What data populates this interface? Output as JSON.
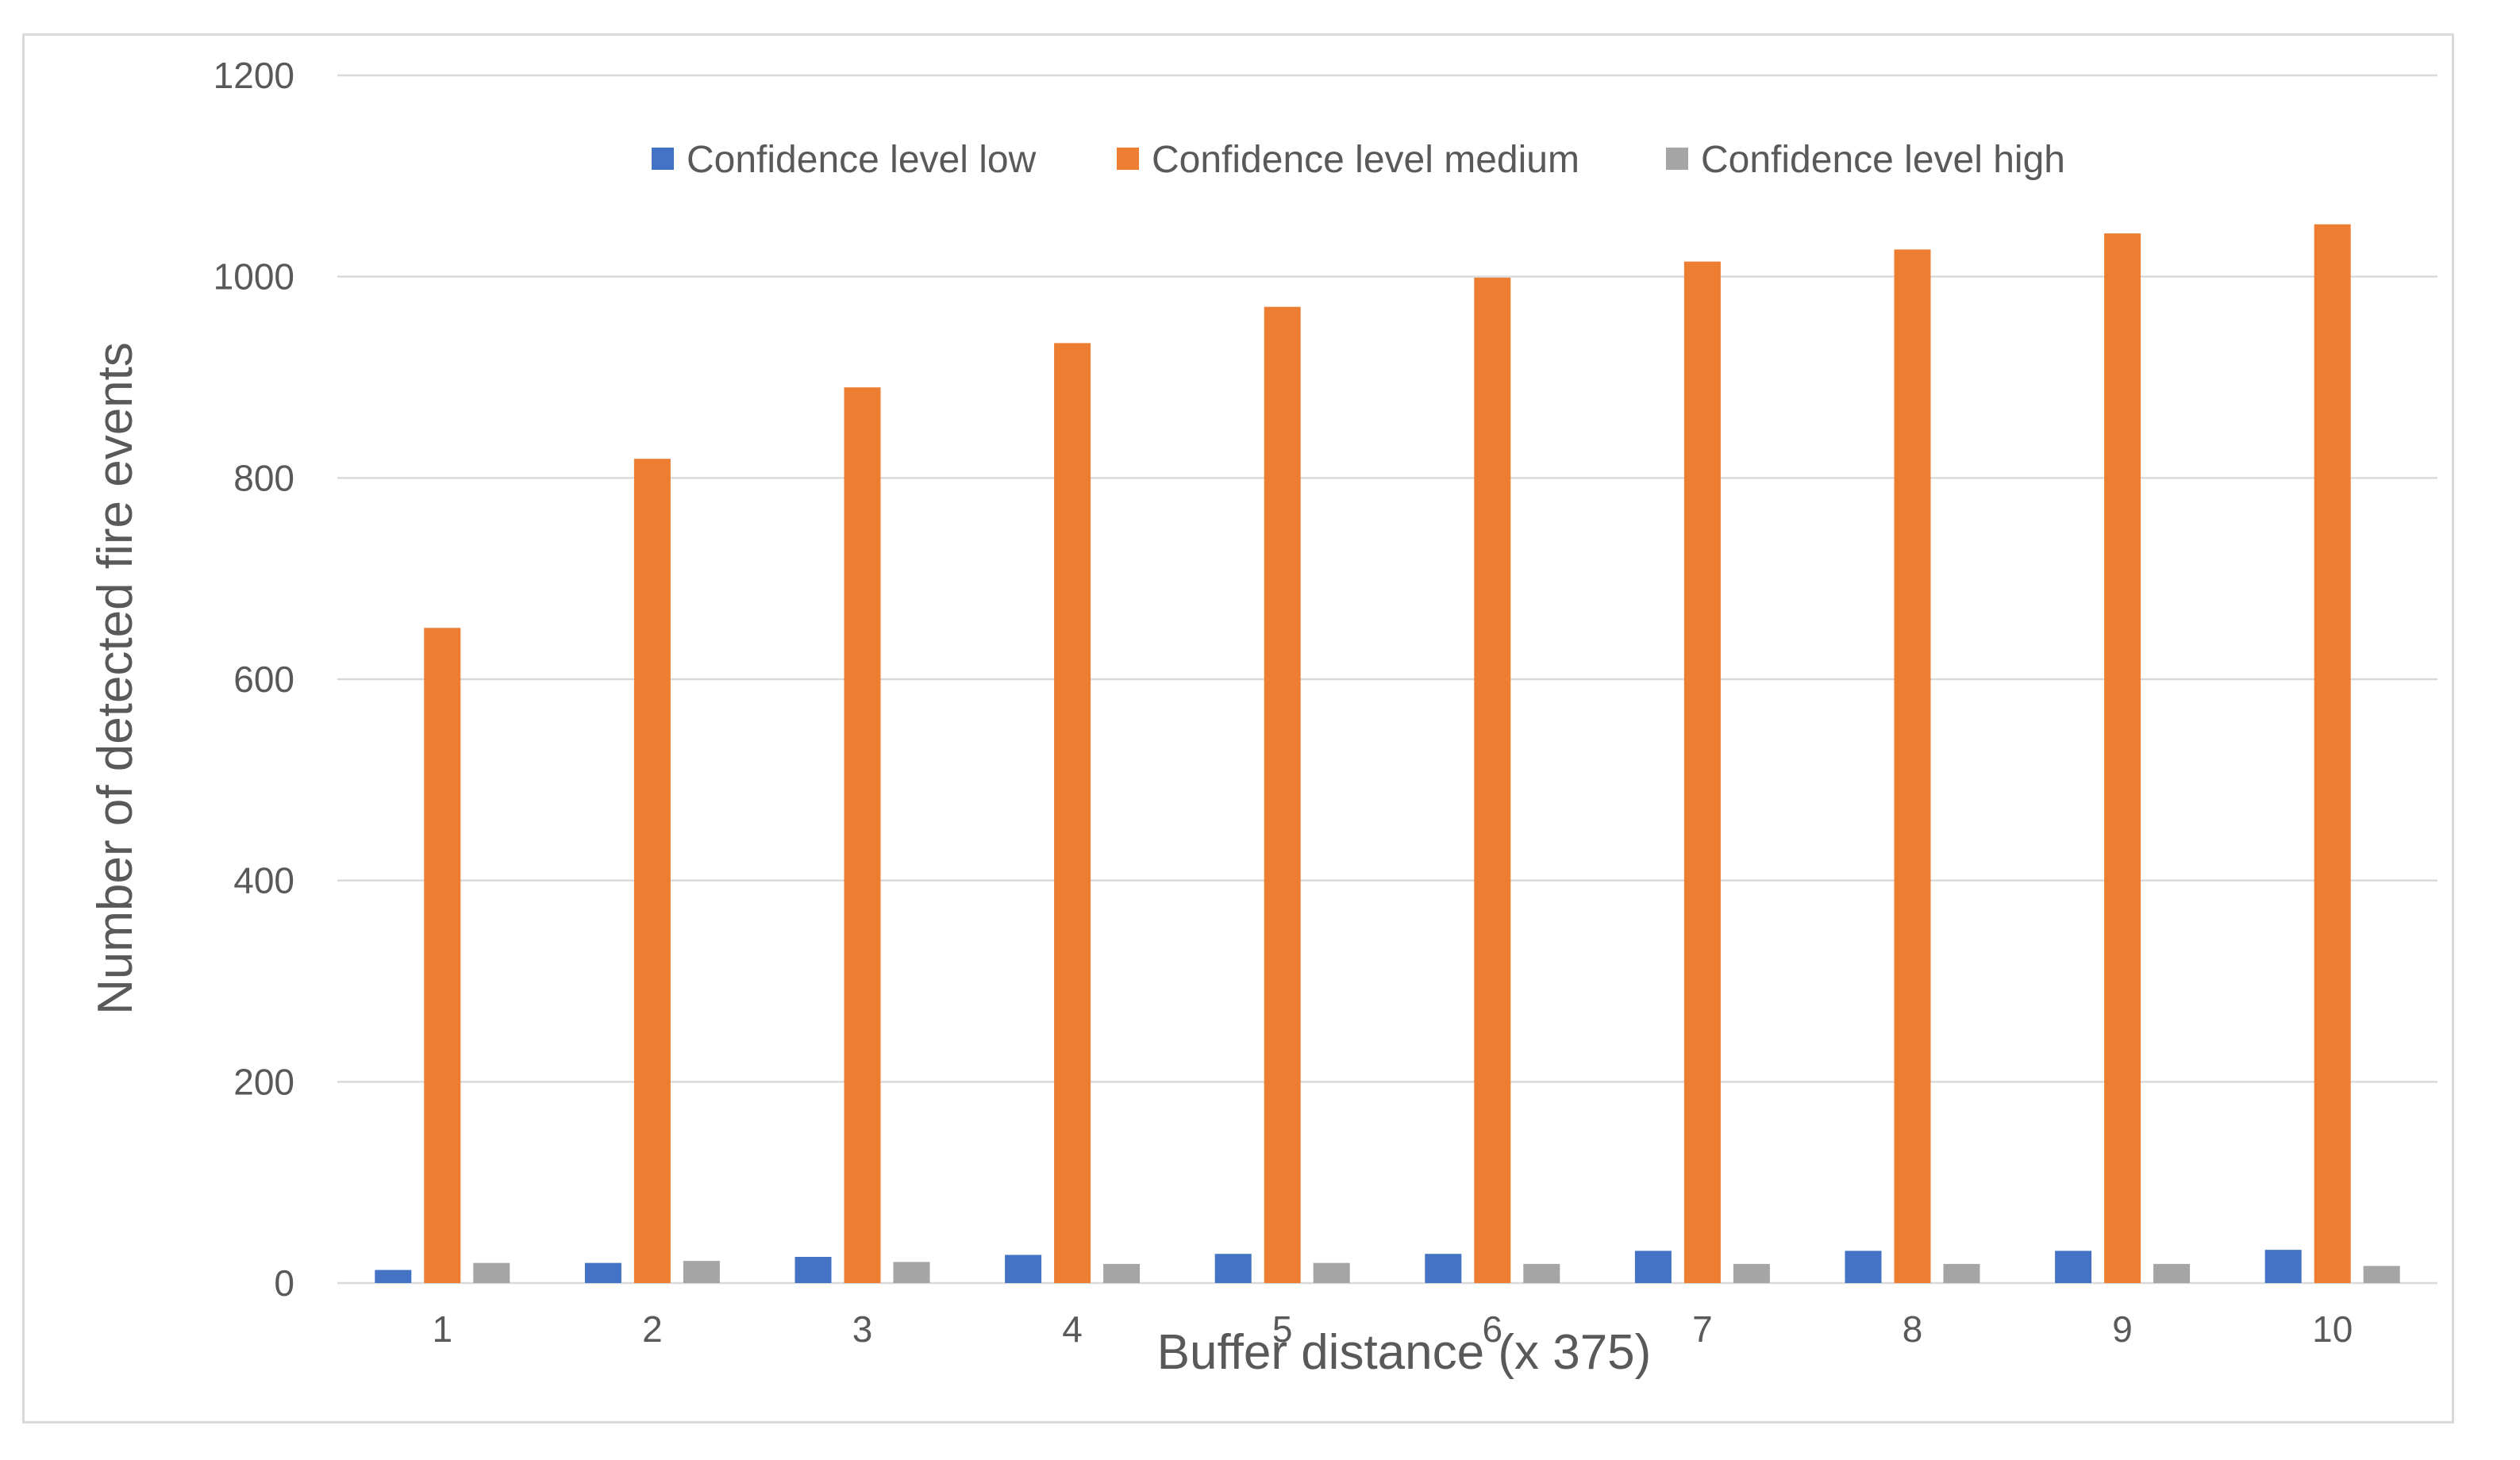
{
  "chart_data": {
    "type": "bar",
    "title": "",
    "xlabel": "Buffer distance (x 375)",
    "ylabel": "Number of detected fire events",
    "categories": [
      "1",
      "2",
      "3",
      "4",
      "5",
      "6",
      "7",
      "8",
      "9",
      "10"
    ],
    "ylim": [
      0,
      1200
    ],
    "yticks": [
      "0",
      "200",
      "400",
      "600",
      "800",
      "1000",
      "1200"
    ],
    "grid": true,
    "legend_position": "top-center",
    "series": [
      {
        "name": "Confidence level low",
        "color": "#4472c4",
        "values": [
          13,
          20,
          26,
          28,
          29,
          29,
          32,
          32,
          32,
          33
        ]
      },
      {
        "name": "Confidence level medium",
        "color": "#ed7d31",
        "values": [
          651,
          819,
          890,
          934,
          970,
          999,
          1015,
          1027,
          1043,
          1052
        ]
      },
      {
        "name": "Confidence level high",
        "color": "#a5a5a5",
        "values": [
          20,
          22,
          21,
          19,
          20,
          19,
          19,
          19,
          19,
          17
        ]
      }
    ]
  }
}
